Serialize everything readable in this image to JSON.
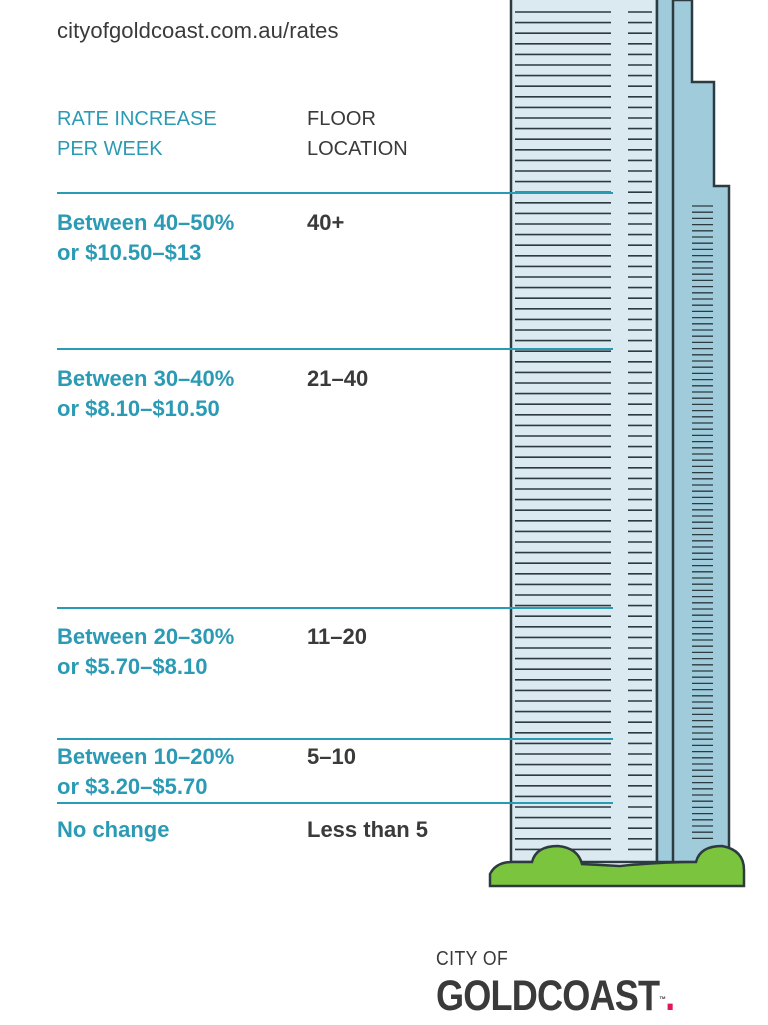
{
  "url": "cityofgoldcoast.com.au/rates",
  "headers": {
    "rate": "RATE INCREASE\nPER WEEK",
    "floor": "FLOOR\nLOCATION"
  },
  "rows": [
    {
      "rate": "Between 40–50%\nor $10.50–$13",
      "floor": "40+"
    },
    {
      "rate": "Between 30–40%\nor $8.10–$10.50",
      "floor": "21–40"
    },
    {
      "rate": "Between 20–30%\nor $5.70–$8.10",
      "floor": "11–20"
    },
    {
      "rate": "Between 10–20%\nor $3.20–$5.70",
      "floor": "5–10"
    },
    {
      "rate": "No change",
      "floor": "Less than 5"
    }
  ],
  "logo": {
    "top": "CITY OF",
    "main": "GOLDCOAST",
    "dot": ".",
    "tm": "™"
  },
  "colors": {
    "accent": "#2b9ab5",
    "text": "#3a3a3a",
    "tower_light": "#dbe9f1",
    "tower_dark": "#9fcbdb",
    "outline": "#2d3a40",
    "grass": "#7bc43d",
    "logo_dot": "#e0165e"
  }
}
